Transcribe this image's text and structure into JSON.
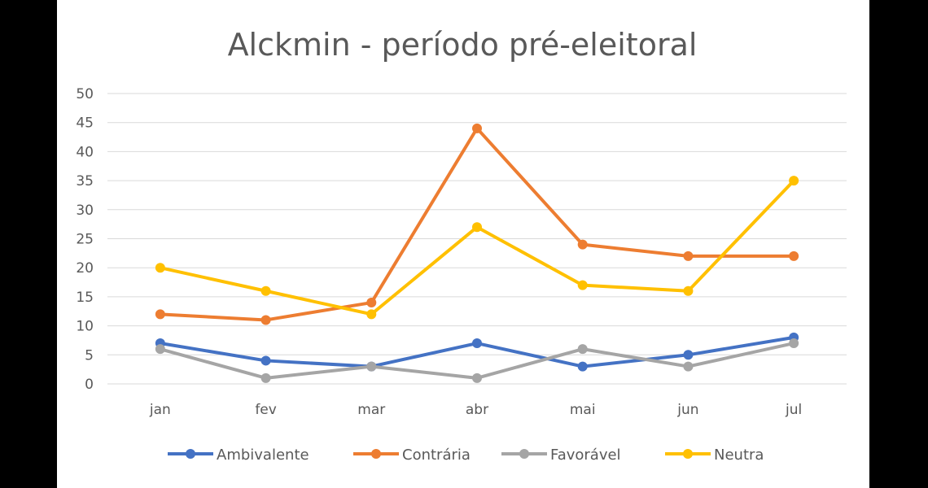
{
  "chart_data": {
    "type": "line",
    "title": "Alckmin - período pré-eleitoral",
    "xlabel": "",
    "ylabel": "",
    "categories": [
      "jan",
      "fev",
      "mar",
      "abr",
      "mai",
      "jun",
      "jul"
    ],
    "ylim": [
      0,
      50
    ],
    "yticks": [
      0,
      5,
      10,
      15,
      20,
      25,
      30,
      35,
      40,
      45,
      50
    ],
    "grid": true,
    "legend_position": "bottom",
    "series": [
      {
        "name": "Ambivalente",
        "color": "#4472c4",
        "values": [
          7,
          4,
          3,
          7,
          3,
          5,
          8
        ]
      },
      {
        "name": "Contrária",
        "color": "#ed7d31",
        "values": [
          12,
          11,
          14,
          44,
          24,
          22,
          22
        ]
      },
      {
        "name": "Favorável",
        "color": "#a5a5a5",
        "values": [
          6,
          1,
          3,
          1,
          6,
          3,
          7
        ]
      },
      {
        "name": "Neutra",
        "color": "#ffc000",
        "values": [
          20,
          16,
          12,
          27,
          17,
          16,
          35
        ]
      }
    ]
  }
}
